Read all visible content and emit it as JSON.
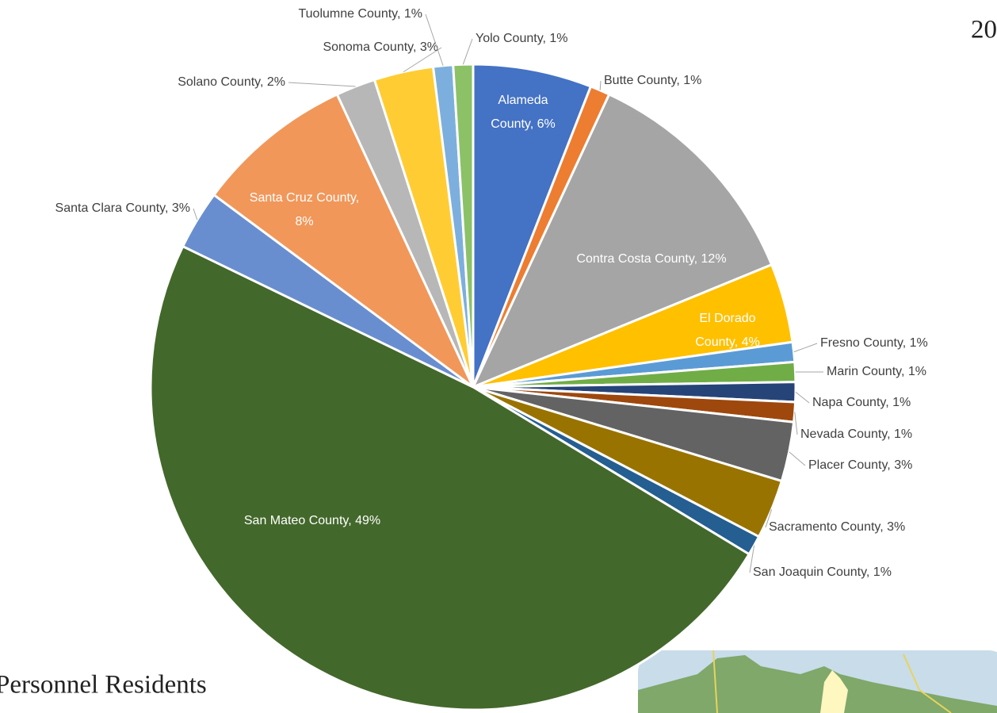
{
  "chart_data": {
    "type": "pie",
    "labels": [
      "Alameda County, 6%",
      "Butte County, 1%",
      "Contra Costa County, 12%",
      "El Dorado County, 4%",
      "Fresno County, 1%",
      "Marin County, 1%",
      "Napa County, 1%",
      "Nevada County, 1%",
      "Placer County, 3%",
      "Sacramento County, 3%",
      "San Joaquin County, 1%",
      "San Mateo County, 49%",
      "Santa Clara County, 3%",
      "Santa Cruz County, 8%",
      "Solano County, 2%",
      "Sonoma County, 3%",
      "Tuolumne County, 1%",
      "Yolo County, 1%"
    ],
    "values": [
      6,
      1,
      12,
      4,
      1,
      1,
      1,
      1,
      3,
      3,
      1,
      49,
      3,
      8,
      2,
      3,
      1,
      1
    ],
    "colors": [
      "#4472c4",
      "#ed7d31",
      "#a5a5a5",
      "#ffc000",
      "#5b9bd5",
      "#70ad47",
      "#264478",
      "#9e480e",
      "#636363",
      "#997300",
      "#255e91",
      "#43682b",
      "#698ed0",
      "#f1975a",
      "#b7b7b7",
      "#ffcd33",
      "#7cafdd",
      "#8cc168"
    ]
  },
  "fragments": {
    "top_right": "20",
    "bottom_left": "Personnel Residents"
  }
}
